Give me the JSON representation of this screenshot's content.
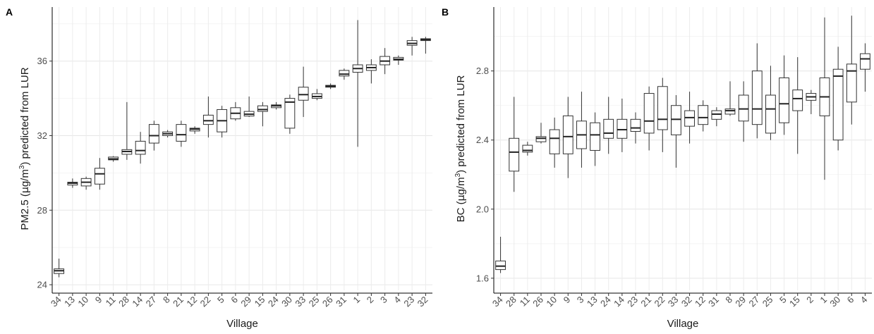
{
  "chart_data": [
    {
      "type": "box",
      "panel_label": "A",
      "ylabel": "PM2.5 (µg/m³) predicted from LUR",
      "ylabel_parts": {
        "pre": "PM2.5 (",
        "mu": "μ",
        "unit": "g/m",
        "sup": "3",
        "post": ") predicted from LUR"
      },
      "xlabel": "Village",
      "ylim": [
        23.7,
        38.9
      ],
      "yticks": [
        24,
        28,
        32,
        36
      ],
      "grid": true,
      "categories": [
        "34",
        "13",
        "10",
        "9",
        "11",
        "28",
        "14",
        "27",
        "8",
        "21",
        "12",
        "22",
        "5",
        "6",
        "29",
        "15",
        "24",
        "30",
        "33",
        "25",
        "26",
        "31",
        "1",
        "2",
        "3",
        "4",
        "23",
        "32"
      ],
      "boxes": [
        {
          "min": 24.4,
          "q1": 24.6,
          "median": 24.75,
          "q3": 24.85,
          "max": 25.4
        },
        {
          "min": 29.2,
          "q1": 29.35,
          "median": 29.45,
          "q3": 29.5,
          "max": 29.7
        },
        {
          "min": 29.1,
          "q1": 29.3,
          "median": 29.5,
          "q3": 29.7,
          "max": 29.8
        },
        {
          "min": 29.1,
          "q1": 29.4,
          "median": 29.95,
          "q3": 30.25,
          "max": 30.8
        },
        {
          "min": 30.6,
          "q1": 30.7,
          "median": 30.75,
          "q3": 30.85,
          "max": 30.9
        },
        {
          "min": 30.7,
          "q1": 31.0,
          "median": 31.15,
          "q3": 31.25,
          "max": 33.8
        },
        {
          "min": 30.5,
          "q1": 31.0,
          "median": 31.2,
          "q3": 31.7,
          "max": 32.2
        },
        {
          "min": 31.2,
          "q1": 31.6,
          "median": 32.0,
          "q3": 32.6,
          "max": 32.8
        },
        {
          "min": 31.9,
          "q1": 32.0,
          "median": 32.1,
          "q3": 32.2,
          "max": 32.3
        },
        {
          "min": 31.4,
          "q1": 31.7,
          "median": 32.05,
          "q3": 32.6,
          "max": 32.8
        },
        {
          "min": 32.1,
          "q1": 32.25,
          "median": 32.35,
          "q3": 32.4,
          "max": 32.5
        },
        {
          "min": 31.9,
          "q1": 32.6,
          "median": 32.8,
          "q3": 33.1,
          "max": 34.1
        },
        {
          "min": 31.9,
          "q1": 32.2,
          "median": 32.8,
          "q3": 33.4,
          "max": 33.6
        },
        {
          "min": 32.8,
          "q1": 32.9,
          "median": 33.2,
          "q3": 33.5,
          "max": 33.8
        },
        {
          "min": 33.0,
          "q1": 33.05,
          "median": 33.15,
          "q3": 33.3,
          "max": 34.1
        },
        {
          "min": 32.5,
          "q1": 33.3,
          "median": 33.4,
          "q3": 33.6,
          "max": 33.8
        },
        {
          "min": 33.4,
          "q1": 33.5,
          "median": 33.6,
          "q3": 33.65,
          "max": 33.8
        },
        {
          "min": 32.1,
          "q1": 32.4,
          "median": 33.8,
          "q3": 34.0,
          "max": 34.2
        },
        {
          "min": 33.0,
          "q1": 33.9,
          "median": 34.2,
          "q3": 34.6,
          "max": 35.7
        },
        {
          "min": 33.9,
          "q1": 34.0,
          "median": 34.1,
          "q3": 34.25,
          "max": 34.5
        },
        {
          "min": 34.5,
          "q1": 34.6,
          "median": 34.65,
          "q3": 34.7,
          "max": 34.8
        },
        {
          "min": 35.0,
          "q1": 35.2,
          "median": 35.3,
          "q3": 35.5,
          "max": 35.6
        },
        {
          "min": 31.4,
          "q1": 35.4,
          "median": 35.6,
          "q3": 35.8,
          "max": 38.2
        },
        {
          "min": 34.8,
          "q1": 35.5,
          "median": 35.65,
          "q3": 35.8,
          "max": 36.1
        },
        {
          "min": 35.3,
          "q1": 35.8,
          "median": 36.0,
          "q3": 36.25,
          "max": 36.7
        },
        {
          "min": 35.8,
          "q1": 36.05,
          "median": 36.1,
          "q3": 36.2,
          "max": 36.3
        },
        {
          "min": 36.3,
          "q1": 36.85,
          "median": 36.95,
          "q3": 37.1,
          "max": 37.3
        },
        {
          "min": 36.4,
          "q1": 37.1,
          "median": 37.15,
          "q3": 37.2,
          "max": 37.3
        }
      ]
    },
    {
      "type": "box",
      "panel_label": "B",
      "ylabel": "BC (µg/m³) predicted from LUR",
      "ylabel_parts": {
        "pre": "BC (",
        "mu": "μ",
        "unit": "g/m",
        "sup": "3",
        "post": ") predicted from LUR"
      },
      "xlabel": "Village",
      "ylim": [
        1.53,
        3.17
      ],
      "yticks": [
        1.6,
        2.0,
        2.4,
        2.8
      ],
      "yticklabels": [
        "1.6",
        "2.0",
        "2.4",
        "2.8"
      ],
      "grid": true,
      "categories": [
        "34",
        "28",
        "11",
        "26",
        "10",
        "9",
        "3",
        "13",
        "24",
        "14",
        "23",
        "21",
        "22",
        "33",
        "32",
        "12",
        "31",
        "8",
        "29",
        "27",
        "25",
        "5",
        "15",
        "2",
        "1",
        "30",
        "6",
        "4"
      ],
      "boxes": [
        {
          "min": 1.63,
          "q1": 1.65,
          "median": 1.67,
          "q3": 1.7,
          "max": 1.84
        },
        {
          "min": 2.1,
          "q1": 2.22,
          "median": 2.33,
          "q3": 2.41,
          "max": 2.65
        },
        {
          "min": 2.31,
          "q1": 2.33,
          "median": 2.34,
          "q3": 2.37,
          "max": 2.39
        },
        {
          "min": 2.38,
          "q1": 2.39,
          "median": 2.41,
          "q3": 2.42,
          "max": 2.5
        },
        {
          "min": 2.24,
          "q1": 2.32,
          "median": 2.41,
          "q3": 2.46,
          "max": 2.53
        },
        {
          "min": 2.18,
          "q1": 2.32,
          "median": 2.42,
          "q3": 2.54,
          "max": 2.65
        },
        {
          "min": 2.24,
          "q1": 2.35,
          "median": 2.43,
          "q3": 2.51,
          "max": 2.68
        },
        {
          "min": 2.25,
          "q1": 2.34,
          "median": 2.43,
          "q3": 2.5,
          "max": 2.56
        },
        {
          "min": 2.32,
          "q1": 2.41,
          "median": 2.44,
          "q3": 2.52,
          "max": 2.65
        },
        {
          "min": 2.33,
          "q1": 2.41,
          "median": 2.46,
          "q3": 2.52,
          "max": 2.64
        },
        {
          "min": 2.38,
          "q1": 2.45,
          "median": 2.47,
          "q3": 2.52,
          "max": 2.56
        },
        {
          "min": 2.34,
          "q1": 2.44,
          "median": 2.51,
          "q3": 2.67,
          "max": 2.71
        },
        {
          "min": 2.33,
          "q1": 2.46,
          "median": 2.52,
          "q3": 2.71,
          "max": 2.76
        },
        {
          "min": 2.24,
          "q1": 2.43,
          "median": 2.52,
          "q3": 2.6,
          "max": 2.66
        },
        {
          "min": 2.38,
          "q1": 2.48,
          "median": 2.53,
          "q3": 2.57,
          "max": 2.68
        },
        {
          "min": 2.45,
          "q1": 2.49,
          "median": 2.53,
          "q3": 2.6,
          "max": 2.63
        },
        {
          "min": 2.48,
          "q1": 2.52,
          "median": 2.55,
          "q3": 2.57,
          "max": 2.59
        },
        {
          "min": 2.54,
          "q1": 2.55,
          "median": 2.57,
          "q3": 2.58,
          "max": 2.74
        },
        {
          "min": 2.39,
          "q1": 2.51,
          "median": 2.58,
          "q3": 2.66,
          "max": 2.74
        },
        {
          "min": 2.41,
          "q1": 2.49,
          "median": 2.58,
          "q3": 2.8,
          "max": 2.96
        },
        {
          "min": 2.4,
          "q1": 2.44,
          "median": 2.58,
          "q3": 2.66,
          "max": 2.83
        },
        {
          "min": 2.43,
          "q1": 2.5,
          "median": 2.61,
          "q3": 2.76,
          "max": 2.89
        },
        {
          "min": 2.32,
          "q1": 2.57,
          "median": 2.64,
          "q3": 2.69,
          "max": 2.88
        },
        {
          "min": 2.55,
          "q1": 2.63,
          "median": 2.65,
          "q3": 2.67,
          "max": 2.69
        },
        {
          "min": 2.17,
          "q1": 2.54,
          "median": 2.65,
          "q3": 2.76,
          "max": 3.11
        },
        {
          "min": 2.34,
          "q1": 2.4,
          "median": 2.77,
          "q3": 2.81,
          "max": 2.94
        },
        {
          "min": 2.49,
          "q1": 2.62,
          "median": 2.8,
          "q3": 2.84,
          "max": 3.12
        },
        {
          "min": 2.68,
          "q1": 2.81,
          "median": 2.87,
          "q3": 2.9,
          "max": 2.96
        }
      ]
    }
  ]
}
